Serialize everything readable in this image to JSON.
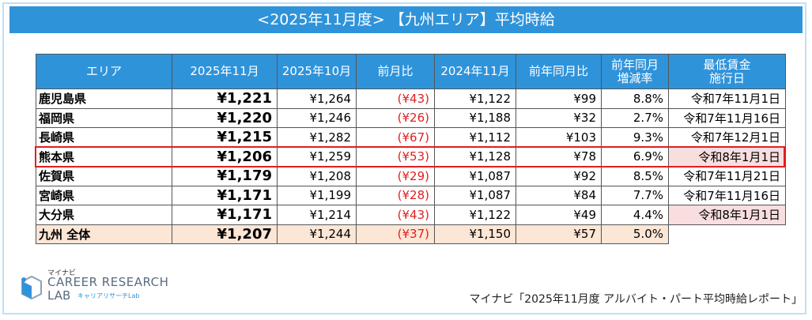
{
  "header": {
    "title": "<2025年11月度> 【九州エリア】平均時給"
  },
  "table": {
    "columns": [
      [
        "エリア"
      ],
      [
        "2025年11月"
      ],
      [
        "2025年10月"
      ],
      [
        "前月比"
      ],
      [
        "2024年11月"
      ],
      [
        "前年同月比"
      ],
      [
        "前年同月",
        "増減率"
      ],
      [
        "最低賃金",
        "施行日"
      ]
    ],
    "rows": [
      [
        "鹿児島県",
        "¥1,221",
        "¥1,264",
        "(¥43)",
        "¥1,122",
        "¥99",
        "8.8%",
        "令和7年11月1日"
      ],
      [
        "福岡県",
        "¥1,220",
        "¥1,246",
        "(¥26)",
        "¥1,188",
        "¥32",
        "2.7%",
        "令和7年11月16日"
      ],
      [
        "長崎県",
        "¥1,215",
        "¥1,282",
        "(¥67)",
        "¥1,112",
        "¥103",
        "9.3%",
        "令和7年12月1日"
      ],
      [
        "熊本県",
        "¥1,206",
        "¥1,259",
        "(¥53)",
        "¥1,128",
        "¥78",
        "6.9%",
        "令和8年1月1日"
      ],
      [
        "佐賀県",
        "¥1,179",
        "¥1,208",
        "(¥29)",
        "¥1,087",
        "¥92",
        "8.5%",
        "令和7年11月21日"
      ],
      [
        "宮崎県",
        "¥1,171",
        "¥1,199",
        "(¥28)",
        "¥1,087",
        "¥84",
        "7.7%",
        "令和7年11月16日"
      ],
      [
        "大分県",
        "¥1,171",
        "¥1,214",
        "(¥43)",
        "¥1,122",
        "¥49",
        "4.4%",
        "令和8年1月1日"
      ],
      [
        "九州  全体",
        "¥1,207",
        "¥1,244",
        "(¥37)",
        "¥1,150",
        "¥57",
        "5.0%"
      ]
    ]
  },
  "logo": {
    "brand": "マイナビ",
    "line1": "CAREER RESEARCH",
    "line2": "LAB",
    "sub": "キャリアリサーチLab"
  },
  "source": "マイナビ「2025年11月度 アルバイト・パート平均時給レポート」"
}
